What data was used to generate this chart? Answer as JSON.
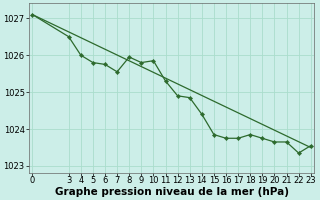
{
  "title": "Graphe pression niveau de la mer (hPa)",
  "background_color": "#cceee8",
  "grid_color": "#aaddcc",
  "line_color": "#2d6a2d",
  "marker_color": "#2d6a2d",
  "ylim": [
    1022.8,
    1027.4
  ],
  "yticks": [
    1023,
    1024,
    1025,
    1026,
    1027
  ],
  "xlim": [
    -0.3,
    23.3
  ],
  "xticks": [
    0,
    3,
    4,
    5,
    6,
    7,
    8,
    9,
    10,
    11,
    12,
    13,
    14,
    15,
    16,
    17,
    18,
    19,
    20,
    21,
    22,
    23
  ],
  "trend_x": [
    0,
    23
  ],
  "trend_y": [
    1027.1,
    1023.5
  ],
  "data_x": [
    0,
    3,
    4,
    5,
    6,
    7,
    8,
    9,
    10,
    11,
    12,
    13,
    14,
    15,
    16,
    17,
    18,
    19,
    20,
    21,
    22,
    23
  ],
  "data_y": [
    1027.1,
    1026.5,
    1026.0,
    1025.8,
    1025.75,
    1025.55,
    1025.95,
    1025.8,
    1025.85,
    1025.3,
    1024.9,
    1024.85,
    1024.4,
    1023.85,
    1023.75,
    1023.75,
    1023.85,
    1023.75,
    1023.65,
    1023.65,
    1023.35,
    1023.55
  ],
  "title_fontsize": 7.5,
  "tick_fontsize": 6.0
}
